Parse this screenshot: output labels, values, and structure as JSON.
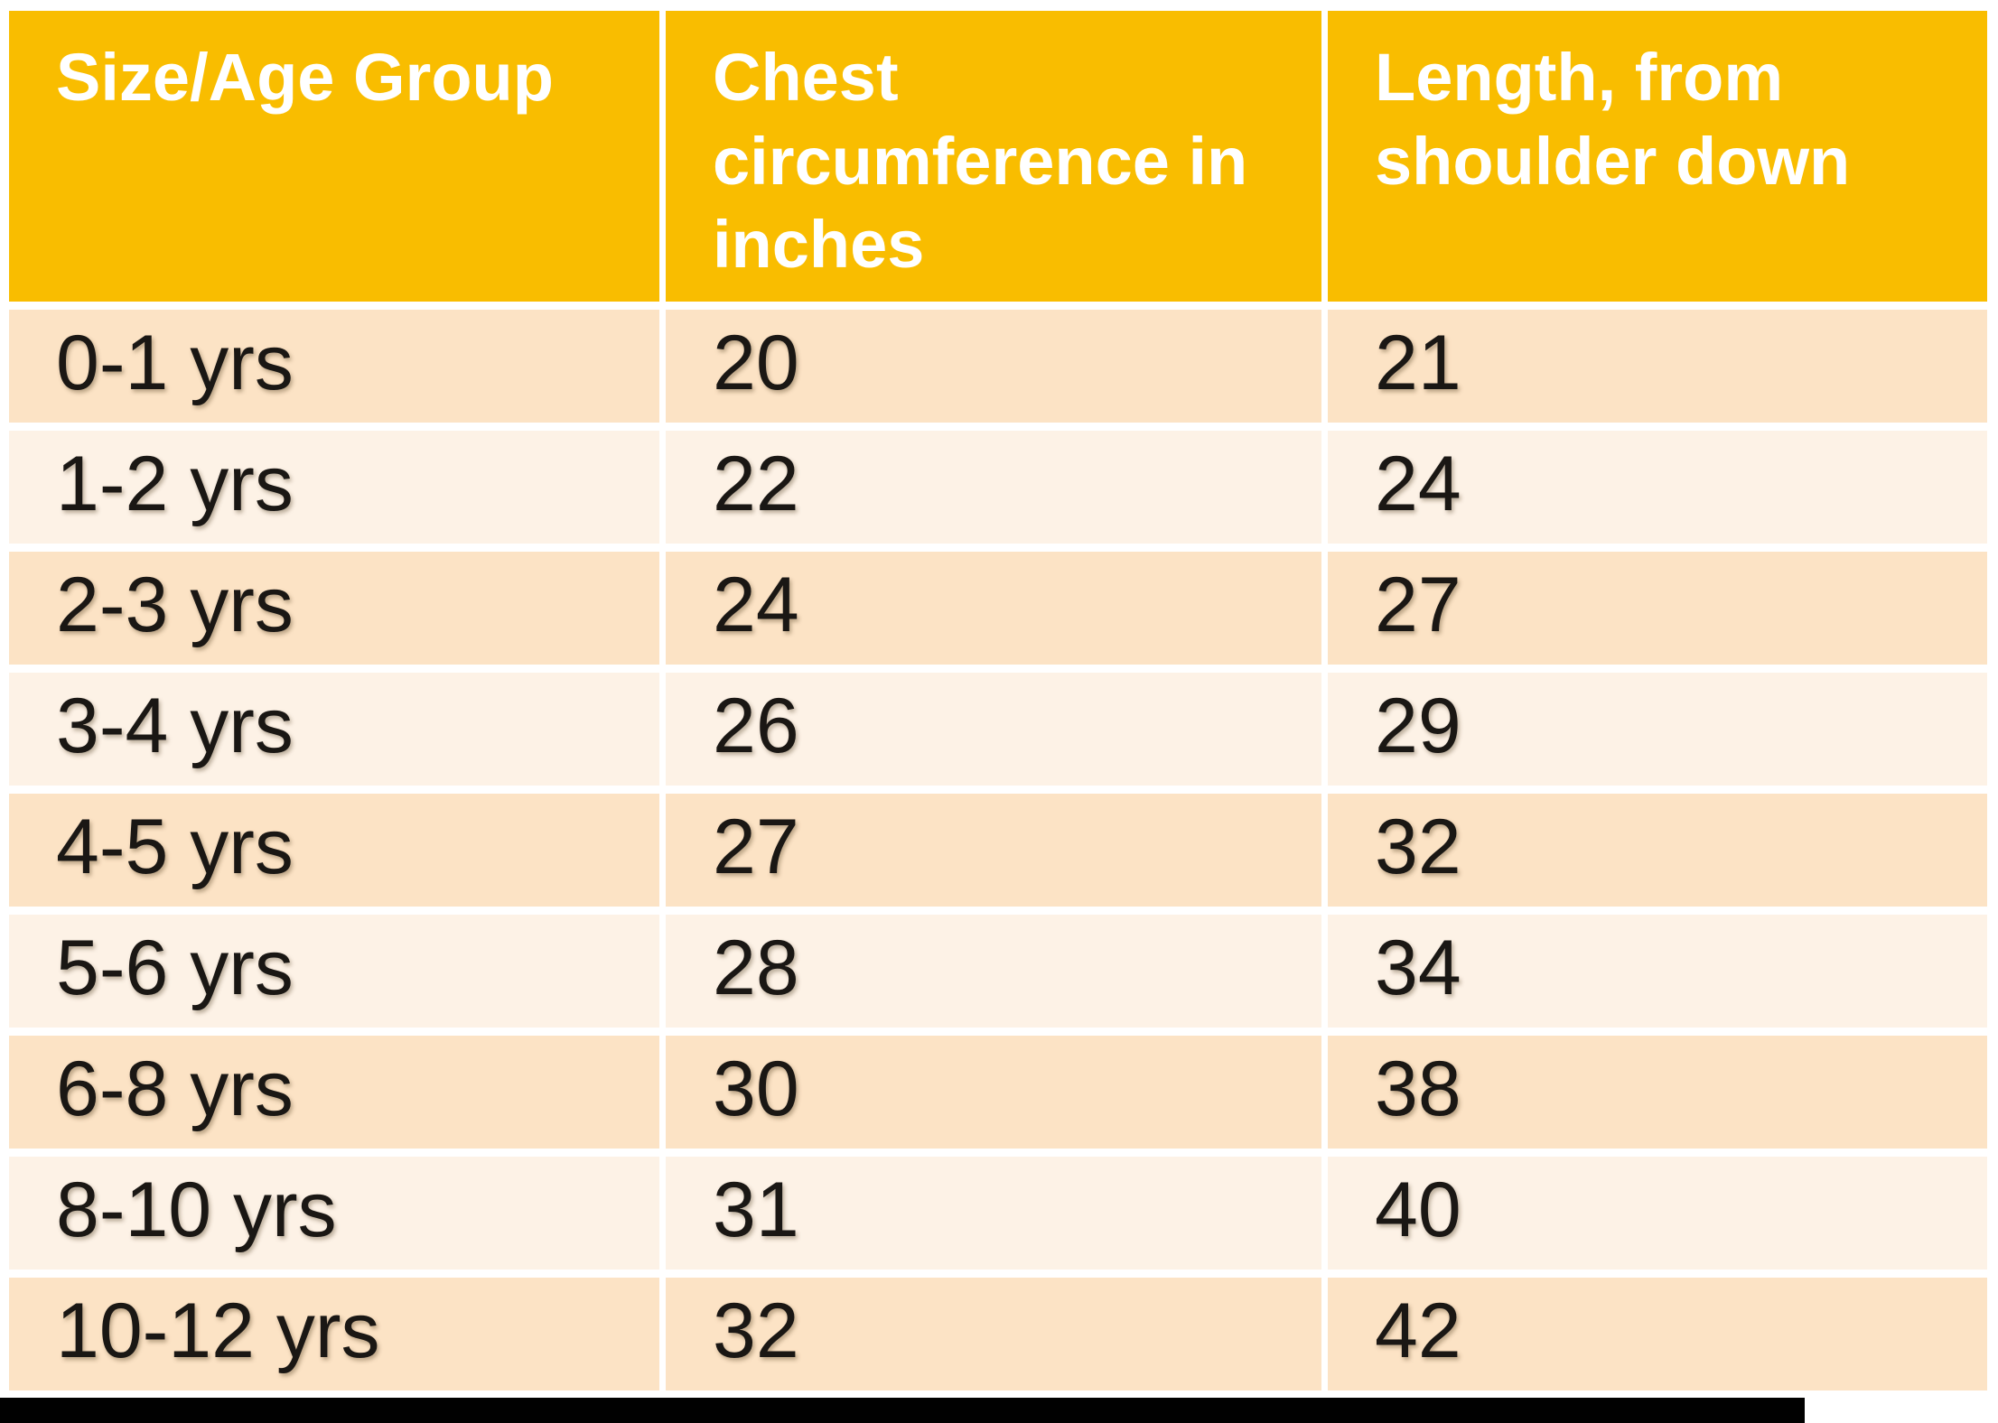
{
  "page": {
    "background": "#FFFFFF"
  },
  "colors": {
    "header_bg": "#F9BD00",
    "header_text": "#FFFFFF",
    "row_dark": "#FCE3C5",
    "row_light": "#FDF2E6",
    "body_text": "#1A1714",
    "bottom_bar": "#010101"
  },
  "header_labels": [
    "Size/Age Group",
    "Chest\ncircumference in\ninches",
    "Length, from\nshoulder down"
  ],
  "chart_data": {
    "type": "table",
    "title": "Size chart by age group",
    "columns": [
      "Size/Age Group",
      "Chest circumference in inches",
      "Length, from shoulder down"
    ],
    "rows": [
      [
        "0-1 yrs",
        "20",
        "21"
      ],
      [
        "1-2 yrs",
        "22",
        "24"
      ],
      [
        "2-3 yrs",
        "24",
        "27"
      ],
      [
        "3-4 yrs",
        "26",
        "29"
      ],
      [
        "4-5 yrs",
        "27",
        "32"
      ],
      [
        "5-6 yrs",
        "28",
        "34"
      ],
      [
        "6-8 yrs",
        "30",
        "38"
      ],
      [
        "8-10 yrs",
        "31",
        "40"
      ],
      [
        "10-12 yrs",
        "32",
        "42"
      ]
    ]
  }
}
